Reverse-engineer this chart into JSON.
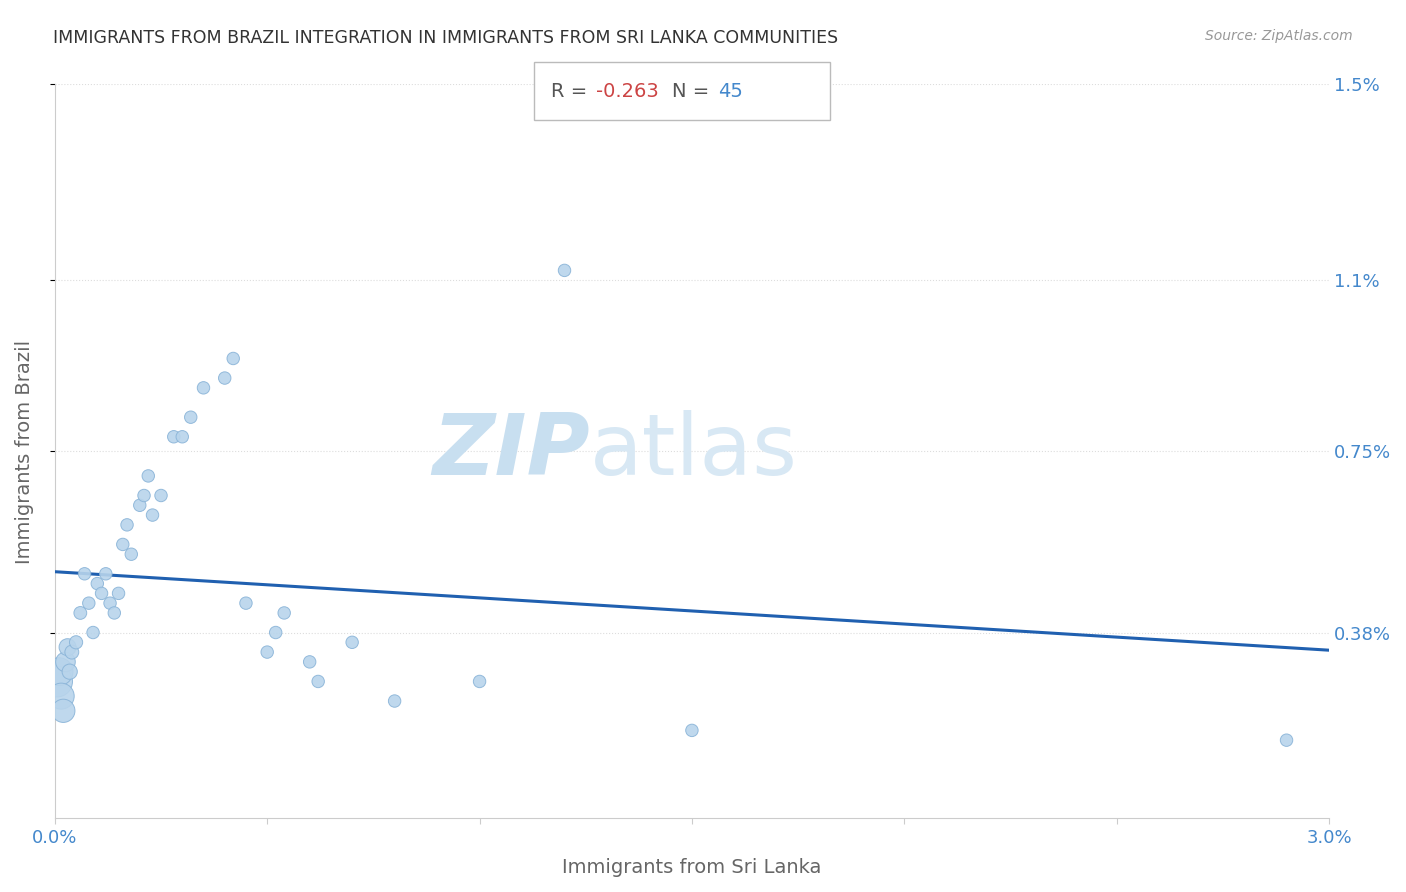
{
  "title": "IMMIGRANTS FROM BRAZIL INTEGRATION IN IMMIGRANTS FROM SRI LANKA COMMUNITIES",
  "source": "Source: ZipAtlas.com",
  "xlabel": "Immigrants from Sri Lanka",
  "ylabel": "Immigrants from Brazil",
  "R": -0.263,
  "N": 45,
  "xlim": [
    0,
    0.03
  ],
  "ylim": [
    0,
    0.015
  ],
  "ytick_labels": [
    "0.38%",
    "0.75%",
    "1.1%",
    "1.5%"
  ],
  "ytick_vals": [
    0.0038,
    0.0075,
    0.011,
    0.015
  ],
  "scatter_color": "#b8d4eb",
  "scatter_edge_color": "#8ab4d8",
  "line_color": "#2060b0",
  "R_color": "#cc4444",
  "N_color": "#4488cc",
  "axis_label_color": "#666666",
  "tick_color": "#4488cc",
  "grid_color": "#dddddd",
  "watermark_zip_color": "#c8dff0",
  "watermark_atlas_color": "#d8e8f4",
  "scatter_x": [
    5e-05,
    0.0001,
    0.00015,
    0.0002,
    0.00025,
    0.0003,
    0.00035,
    0.0004,
    0.0005,
    0.0006,
    0.0007,
    0.0008,
    0.0009,
    0.001,
    0.0011,
    0.0012,
    0.0013,
    0.0014,
    0.0015,
    0.0016,
    0.0017,
    0.0018,
    0.002,
    0.0021,
    0.0022,
    0.0023,
    0.0025,
    0.0028,
    0.003,
    0.0032,
    0.0035,
    0.004,
    0.0042,
    0.0045,
    0.005,
    0.0052,
    0.0054,
    0.006,
    0.0062,
    0.007,
    0.008,
    0.01,
    0.012,
    0.015,
    0.029
  ],
  "scatter_y": [
    0.0028,
    0.003,
    0.0025,
    0.0022,
    0.0032,
    0.0035,
    0.003,
    0.0034,
    0.0036,
    0.0042,
    0.005,
    0.0044,
    0.0038,
    0.0048,
    0.0046,
    0.005,
    0.0044,
    0.0042,
    0.0046,
    0.0056,
    0.006,
    0.0054,
    0.0064,
    0.0066,
    0.007,
    0.0062,
    0.0066,
    0.0078,
    0.0078,
    0.0082,
    0.0088,
    0.009,
    0.0094,
    0.0044,
    0.0034,
    0.0038,
    0.0042,
    0.0032,
    0.0028,
    0.0036,
    0.0024,
    0.0028,
    0.0112,
    0.0018,
    0.0016
  ],
  "scatter_sizes": [
    500,
    400,
    350,
    280,
    200,
    150,
    120,
    100,
    90,
    85,
    80,
    80,
    80,
    80,
    80,
    80,
    80,
    80,
    80,
    80,
    80,
    80,
    80,
    80,
    80,
    80,
    80,
    80,
    80,
    80,
    80,
    80,
    80,
    80,
    80,
    80,
    80,
    80,
    80,
    80,
    80,
    80,
    80,
    80,
    80
  ]
}
